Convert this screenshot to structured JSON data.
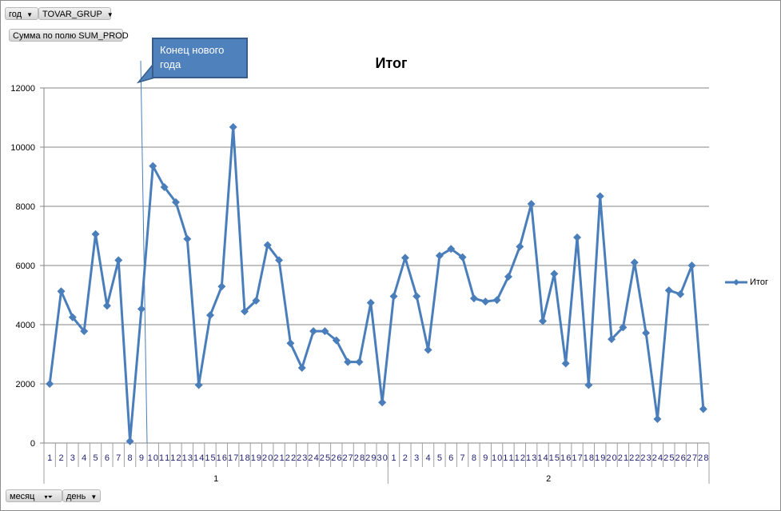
{
  "filters": {
    "top": [
      {
        "label": "год"
      },
      {
        "label": "TOVAR_GRUP"
      }
    ],
    "value_field": "Сумма по полю SUM_PROD",
    "bottom": [
      {
        "label": "месяц"
      },
      {
        "label": "день"
      }
    ]
  },
  "annotation": {
    "text_line1": "Конец нового",
    "text_line2": "года"
  },
  "colors": {
    "series": "#4a7ebb",
    "grid": "#868686",
    "callout": "#4f81bd",
    "callout_border": "#385d8a"
  },
  "chart_data": {
    "type": "line",
    "title": "Итог",
    "xlabel": "",
    "ylabel": "",
    "ylim": [
      0,
      12000
    ],
    "yticks": [
      0,
      2000,
      4000,
      6000,
      8000,
      10000,
      12000
    ],
    "grid": true,
    "legend": "right",
    "groups": [
      {
        "label": "1",
        "categories": [
          "1",
          "2",
          "3",
          "4",
          "5",
          "6",
          "7",
          "8",
          "9",
          "10",
          "11",
          "12",
          "13",
          "14",
          "15",
          "16",
          "17",
          "18",
          "19",
          "20",
          "21",
          "22",
          "23",
          "24",
          "25",
          "26",
          "27",
          "28",
          "29",
          "30"
        ]
      },
      {
        "label": "2",
        "categories": [
          "1",
          "2",
          "3",
          "4",
          "5",
          "6",
          "7",
          "8",
          "9",
          "10",
          "11",
          "12",
          "13",
          "14",
          "15",
          "16",
          "17",
          "18",
          "19",
          "20",
          "21",
          "22",
          "23",
          "24",
          "25",
          "26",
          "27",
          "28"
        ]
      }
    ],
    "series": [
      {
        "name": "Итог",
        "marker": "diamond",
        "values": [
          2000,
          5130,
          4250,
          3780,
          7060,
          4640,
          6180,
          60,
          4530,
          9360,
          8650,
          8140,
          6900,
          1960,
          4320,
          5290,
          10680,
          4450,
          4810,
          6690,
          6180,
          3370,
          2540,
          3780,
          3780,
          3470,
          2740,
          2740,
          4740,
          1370,
          4960,
          6260,
          4960,
          3150,
          6330,
          6560,
          6280,
          4890,
          4780,
          4830,
          5620,
          6640,
          8080,
          4120,
          5720,
          2690,
          6950,
          1960,
          8340,
          3510,
          3910,
          6100,
          3720,
          810,
          5160,
          5030,
          6000,
          1150
        ]
      }
    ]
  }
}
